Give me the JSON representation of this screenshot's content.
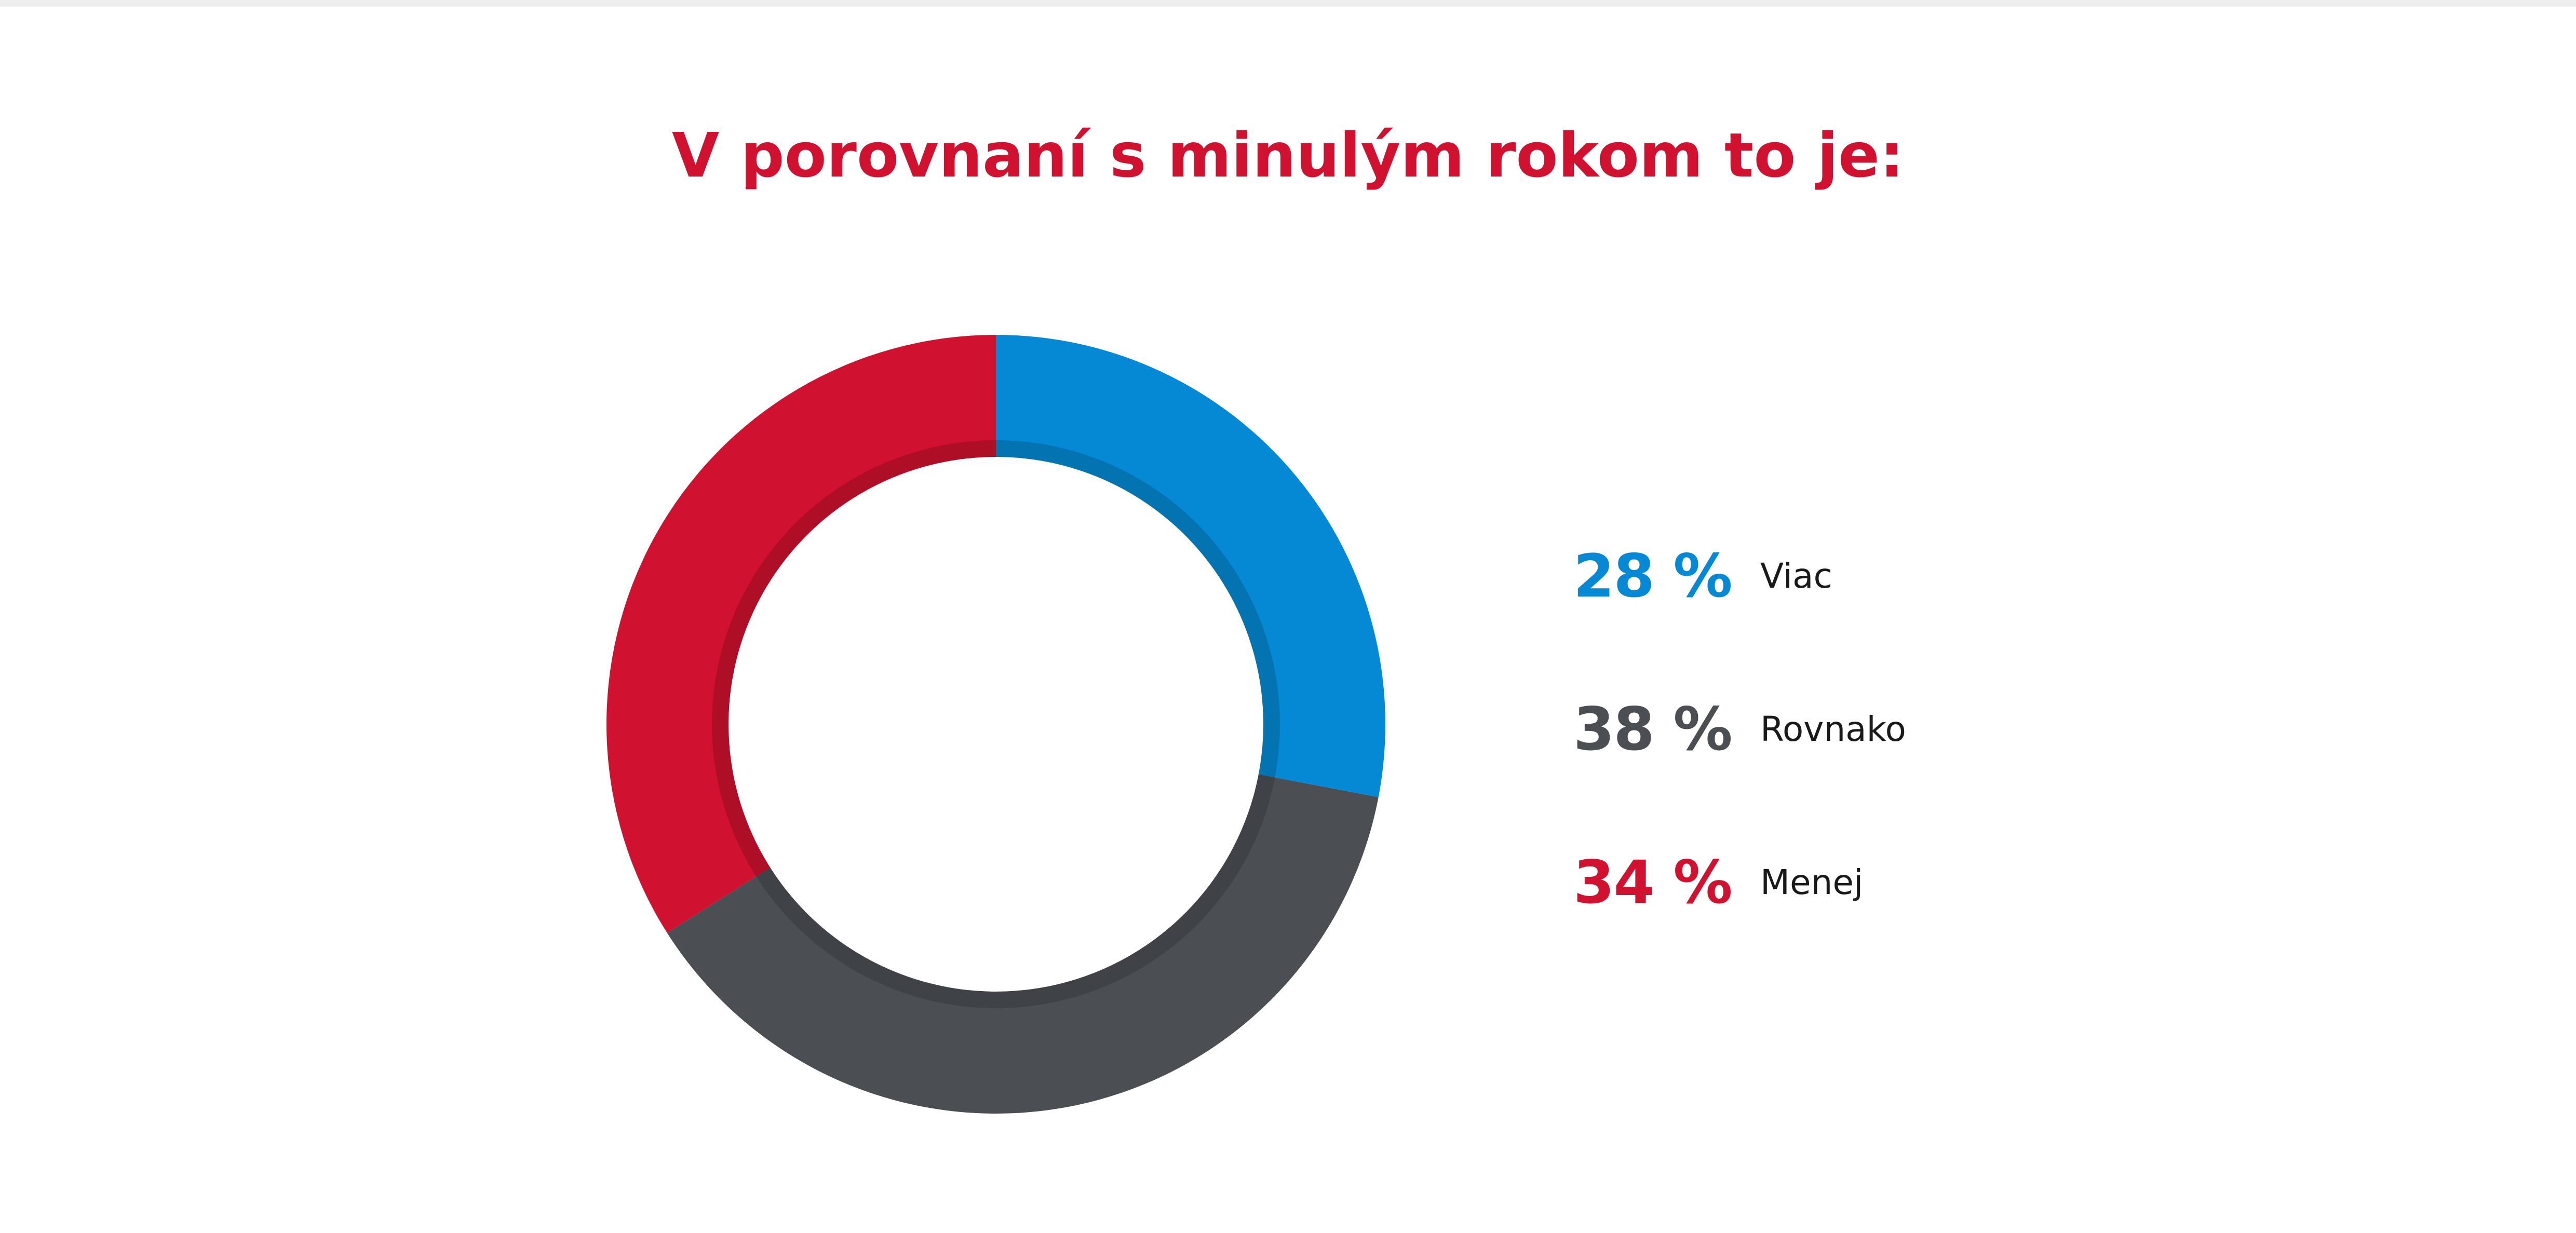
{
  "chart_data": {
    "type": "pie",
    "title": "V porovnaní s minulým rokom to je:",
    "slices": [
      {
        "label": "Viac",
        "value": 28,
        "value_text": "28 %",
        "color": "#0589d4"
      },
      {
        "label": "Rovnako",
        "value": 38,
        "value_text": "38 %",
        "color": "#4b4f54"
      },
      {
        "label": "Menej",
        "value": 34,
        "value_text": "34 %",
        "color": "#d0112f"
      }
    ],
    "donut": true,
    "legend_position": "right",
    "title_color": "#d0112f",
    "legend_value_colors": [
      "#0589d4",
      "#4b4f54",
      "#d0112f"
    ]
  }
}
